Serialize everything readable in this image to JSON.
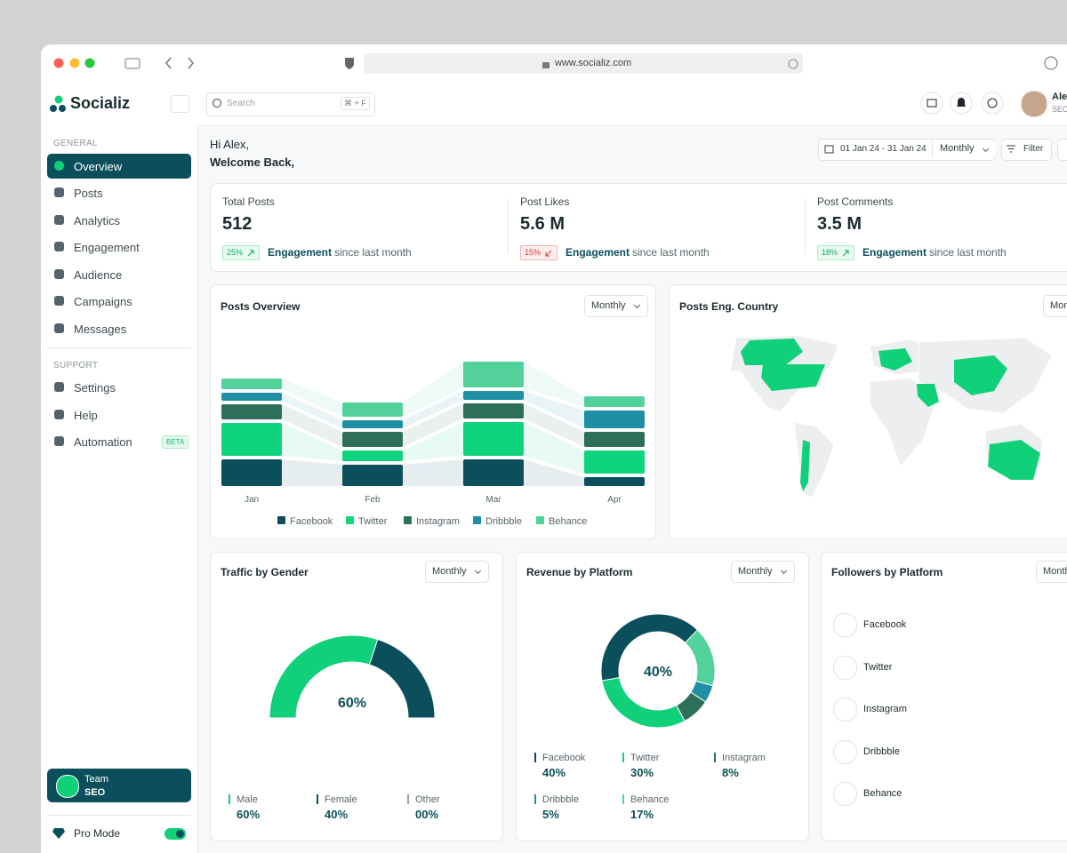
{
  "browser": {
    "url": "www.socializ.com"
  },
  "sidebar": {
    "brand": "Socializ",
    "general_title": "GENERAL",
    "general": [
      "Overview",
      "Posts",
      "Analytics",
      "Engagement",
      "Audience",
      "Campaigns",
      "Messages"
    ],
    "support_title": "SUPPORT",
    "support": [
      "Settings",
      "Help",
      "Automation"
    ],
    "badge": "BETA",
    "team": {
      "name": "Team",
      "role": "SEO"
    },
    "pro_mode": "Pro Mode"
  },
  "topbar": {
    "search": "Search",
    "shortcut": "⌘ + F",
    "user": {
      "name": "Alex",
      "role": "SEO"
    }
  },
  "header": {
    "greeting": "Hi Alex,",
    "welcome": "Welcome Back,",
    "date_range": "01 Jan 24 - 31 Jan 24",
    "period": "Monthly",
    "filter": "Filter"
  },
  "stats": [
    {
      "label": "Total Posts",
      "value": "512",
      "change": "25%",
      "trend": "up",
      "metric": "Engagement",
      "note": "since last month"
    },
    {
      "label": "Post Likes",
      "value": "5.6 M",
      "change": "15%",
      "trend": "down",
      "metric": "Engagement",
      "note": "since last month"
    },
    {
      "label": "Post Comments",
      "value": "3.5 M",
      "change": "18%",
      "trend": "up",
      "metric": "Engagement",
      "note": "since last month"
    }
  ],
  "posts_overview": {
    "title": "Posts Overview",
    "period": "Monthly",
    "chart_data": {
      "type": "stacked-bar",
      "categories": [
        "Jan",
        "Feb",
        "Mar",
        "Apr"
      ],
      "series": [
        {
          "name": "Facebook",
          "color": "#0b4f5c",
          "values": [
            30,
            24,
            30,
            10
          ]
        },
        {
          "name": "Twitter",
          "color": "#0fd47d",
          "values": [
            37,
            12,
            38,
            26
          ]
        },
        {
          "name": "Instagram",
          "color": "#2d6f5b",
          "values": [
            17,
            17,
            17,
            17
          ]
        },
        {
          "name": "Dribbble",
          "color": "#1f8fa3",
          "values": [
            9,
            9,
            10,
            20
          ]
        },
        {
          "name": "Behance",
          "color": "#52d19a",
          "values": [
            12,
            16,
            29,
            12
          ]
        }
      ]
    }
  },
  "country": {
    "title": "Posts Eng. Country",
    "period": "Monthly"
  },
  "gender": {
    "title": "Traffic by Gender",
    "period": "Monthly",
    "chart_data": {
      "type": "gauge",
      "categories": [
        "Male",
        "Female",
        "Other"
      ],
      "values": [
        60,
        40,
        0
      ],
      "value_labels": [
        "60%",
        "40%",
        "00%"
      ],
      "colors": [
        "#10d07a",
        "#0b4f5c",
        "#9aa5a9"
      ]
    }
  },
  "revenue": {
    "title": "Revenue by Platform",
    "period": "Monthly",
    "chart_data": {
      "type": "donut",
      "categories": [
        "Facebook",
        "Twitter",
        "Instagram",
        "Dribbble",
        "Behance"
      ],
      "values": [
        40,
        30,
        8,
        5,
        17
      ],
      "value_labels": [
        "40%",
        "30%",
        "8%",
        "5%",
        "17%"
      ],
      "colors": [
        "#0b4f5c",
        "#10d07a",
        "#2d6f5b",
        "#1f8fa3",
        "#52d19a"
      ]
    }
  },
  "followers": {
    "title": "Followers by Platform",
    "period": "Monthly",
    "platforms": [
      "Facebook",
      "Twitter",
      "Instagram",
      "Dribbble",
      "Behance"
    ]
  }
}
